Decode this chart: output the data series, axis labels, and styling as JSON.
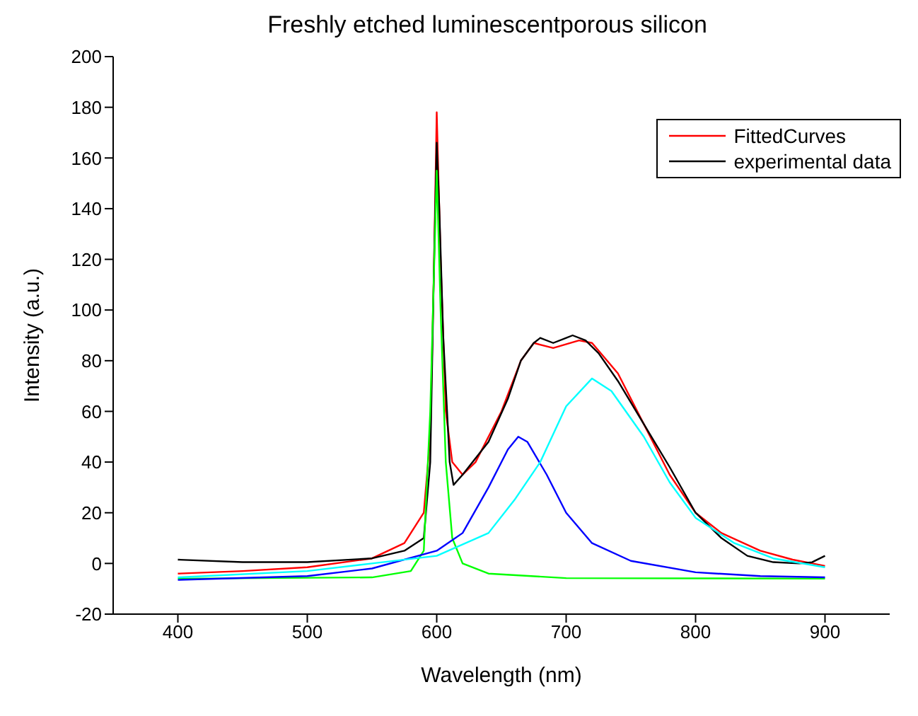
{
  "chart_data": {
    "type": "line",
    "title": "Freshly etched luminescentporous silicon",
    "xlabel": "Wavelength (nm)",
    "ylabel": "Intensity (a.u.)",
    "xlim": [
      350,
      950
    ],
    "xticks": [
      400,
      500,
      600,
      700,
      800,
      900
    ],
    "ylim": [
      -20,
      200
    ],
    "yticks": [
      -20,
      0,
      20,
      40,
      60,
      80,
      100,
      120,
      140,
      160,
      180,
      200
    ],
    "grid": false,
    "legend": "top right",
    "marker": "none",
    "line_style": "solid",
    "series": [
      {
        "name": "FittedCurves",
        "color": "#ff0000",
        "x": [
          400,
          450,
          500,
          550,
          575,
          590,
          595,
          598,
          600,
          603,
          607,
          612,
          620,
          630,
          650,
          665,
          675,
          690,
          710,
          720,
          740,
          760,
          780,
          800,
          820,
          850,
          875,
          900
        ],
        "values": [
          -4,
          -3,
          -1.5,
          2,
          8,
          20,
          50,
          120,
          178,
          120,
          60,
          40,
          35,
          40,
          60,
          80,
          87,
          85,
          88,
          87,
          75,
          55,
          35,
          20,
          12,
          5,
          1.5,
          -1
        ]
      },
      {
        "name": "experimental data",
        "color": "#000000",
        "x": [
          400,
          450,
          500,
          550,
          575,
          590,
          595,
          598,
          600,
          602,
          605,
          610,
          613,
          620,
          640,
          655,
          665,
          675,
          680,
          690,
          700,
          705,
          715,
          725,
          740,
          760,
          780,
          800,
          820,
          840,
          860,
          880,
          890,
          900
        ],
        "values": [
          1.5,
          0.5,
          0.5,
          2,
          5,
          10,
          40,
          120,
          166,
          140,
          90,
          40,
          31,
          35,
          48,
          65,
          80,
          87,
          89,
          87,
          89,
          90,
          88,
          83,
          72,
          55,
          38,
          20,
          10,
          3,
          0.5,
          0,
          0.5,
          3
        ]
      },
      {
        "color": "#00ff00",
        "x": [
          400,
          550,
          580,
          590,
          595,
          600,
          603,
          607,
          612,
          620,
          640,
          700,
          900
        ],
        "values": [
          -6,
          -5.5,
          -3,
          5,
          60,
          155,
          100,
          40,
          10,
          0,
          -4,
          -5.8,
          -6
        ]
      },
      {
        "color": "#0000ff",
        "x": [
          400,
          500,
          550,
          600,
          620,
          640,
          655,
          663,
          670,
          685,
          700,
          720,
          750,
          800,
          850,
          900
        ],
        "values": [
          -6.5,
          -5,
          -2,
          5,
          12,
          30,
          45,
          50,
          48,
          35,
          20,
          8,
          1,
          -3.5,
          -5,
          -5.5
        ]
      },
      {
        "color": "#00ffff",
        "x": [
          400,
          500,
          550,
          600,
          640,
          660,
          680,
          700,
          720,
          735,
          760,
          780,
          800,
          830,
          860,
          900
        ],
        "values": [
          -5.5,
          -3,
          0,
          3,
          12,
          25,
          40,
          62,
          73,
          68,
          50,
          32,
          18,
          8,
          2,
          -1.5
        ]
      }
    ]
  }
}
